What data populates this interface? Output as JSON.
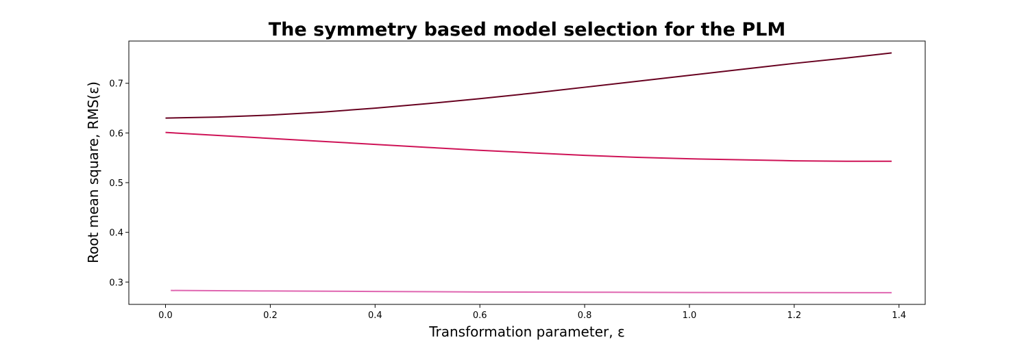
{
  "chart_data": {
    "type": "line",
    "title": "The symmetry based model selection for the PLM",
    "xlabel": "Transformation parameter, ε",
    "ylabel": "Root mean square, RMS(ε)",
    "xlim": [
      -0.07,
      1.45
    ],
    "ylim": [
      0.255,
      0.785
    ],
    "xticks": [
      0.0,
      0.2,
      0.4,
      0.6,
      0.8,
      1.0,
      1.2,
      1.4
    ],
    "xtick_labels": [
      "0.0",
      "0.2",
      "0.4",
      "0.6",
      "0.8",
      "1.0",
      "1.2",
      "1.4"
    ],
    "yticks": [
      0.3,
      0.4,
      0.5,
      0.6,
      0.7
    ],
    "ytick_labels": [
      "0.3",
      "0.4",
      "0.5",
      "0.6",
      "0.7"
    ],
    "grid": false,
    "legend": "none",
    "series": [
      {
        "color": "#67001f",
        "x": [
          0.0,
          0.1,
          0.2,
          0.3,
          0.4,
          0.5,
          0.6,
          0.7,
          0.8,
          0.9,
          1.0,
          1.1,
          1.2,
          1.3,
          1.386
        ],
        "y": [
          0.63,
          0.632,
          0.636,
          0.642,
          0.65,
          0.659,
          0.669,
          0.68,
          0.692,
          0.704,
          0.716,
          0.728,
          0.74,
          0.751,
          0.761
        ]
      },
      {
        "color": "#ce1256",
        "x": [
          0.0,
          0.1,
          0.2,
          0.3,
          0.4,
          0.5,
          0.6,
          0.7,
          0.8,
          0.9,
          1.0,
          1.1,
          1.2,
          1.3,
          1.386
        ],
        "y": [
          0.601,
          0.595,
          0.589,
          0.583,
          0.577,
          0.571,
          0.565,
          0.56,
          0.555,
          0.551,
          0.548,
          0.546,
          0.544,
          0.543,
          0.543
        ]
      },
      {
        "color": "#df65b0",
        "x": [
          0.01,
          0.2,
          0.4,
          0.6,
          0.8,
          1.0,
          1.2,
          1.386
        ],
        "y": [
          0.283,
          0.282,
          0.281,
          0.28,
          0.2795,
          0.279,
          0.2787,
          0.2785
        ]
      }
    ]
  }
}
